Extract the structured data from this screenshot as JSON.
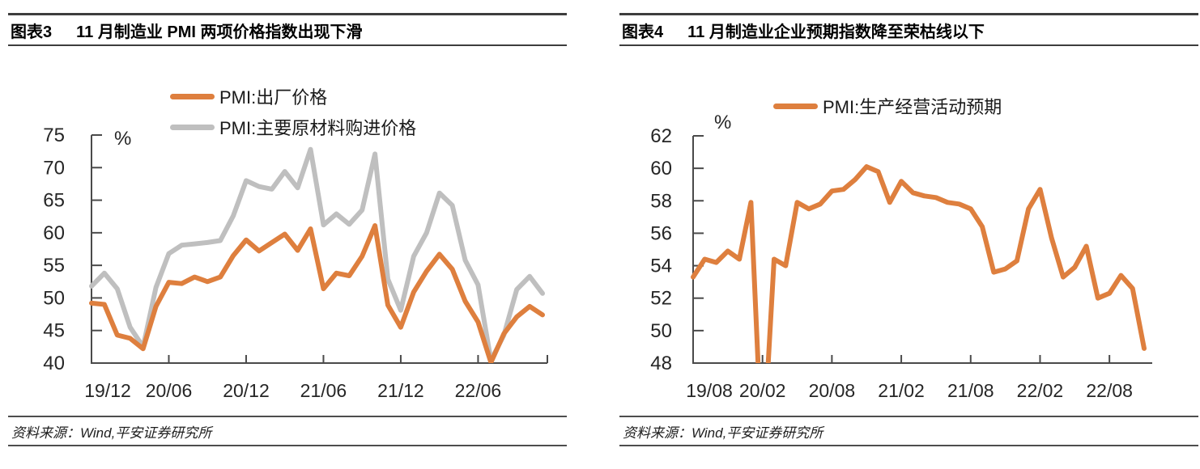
{
  "panels": {
    "left": {
      "tag": "图表3",
      "title": "11 月制造业 PMI 两项价格指数出现下滑",
      "source": "资料来源：Wind,平安证券研究所"
    },
    "right": {
      "tag": "图表4",
      "title": "11 月制造业企业预期指数降至荣枯线以下",
      "source": "资料来源：Wind,平安证券研究所"
    }
  },
  "colors": {
    "orange": "#DE7F3E",
    "gray": "#BFBFBF",
    "axis": "#4a4a4a",
    "tick_text": "#262626",
    "rule": "#3d3d3d"
  },
  "chart_data": [
    {
      "type": "line",
      "title": "11 月制造业 PMI 两项价格指数出现下滑",
      "unit": "%",
      "ylim": [
        40,
        75
      ],
      "ytick_step": 5,
      "grid": false,
      "legend_position": "top",
      "x": [
        "19/12",
        "20/01",
        "20/02",
        "20/03",
        "20/04",
        "20/05",
        "20/06",
        "20/07",
        "20/08",
        "20/09",
        "20/10",
        "20/11",
        "20/12",
        "21/01",
        "21/02",
        "21/03",
        "21/04",
        "21/05",
        "21/06",
        "21/07",
        "21/08",
        "21/09",
        "21/10",
        "21/11",
        "21/12",
        "22/01",
        "22/02",
        "22/03",
        "22/04",
        "22/05",
        "22/06",
        "22/07",
        "22/08",
        "22/09",
        "22/10",
        "22/11"
      ],
      "x_tick_labels": [
        "19/12",
        "20/06",
        "20/12",
        "21/06",
        "21/12",
        "22/06"
      ],
      "series": [
        {
          "name": "PMI:出厂价格",
          "color": "#DE7F3E",
          "values": [
            49.2,
            49.0,
            44.3,
            43.8,
            42.2,
            48.7,
            52.4,
            52.2,
            53.2,
            52.5,
            53.2,
            56.5,
            58.9,
            57.2,
            58.5,
            59.8,
            57.3,
            60.6,
            51.4,
            53.8,
            53.4,
            56.4,
            61.1,
            48.9,
            45.5,
            50.9,
            54.1,
            56.7,
            54.4,
            49.5,
            46.3,
            40.1,
            44.5,
            47.1,
            48.7,
            47.4
          ]
        },
        {
          "name": "PMI:主要原材料购进价格",
          "color": "#BFBFBF",
          "values": [
            51.8,
            53.8,
            51.4,
            45.5,
            42.5,
            51.6,
            56.8,
            58.1,
            58.3,
            58.5,
            58.8,
            62.6,
            68.0,
            67.1,
            66.7,
            69.4,
            66.9,
            72.8,
            61.2,
            62.9,
            61.3,
            63.5,
            72.1,
            52.9,
            48.1,
            56.4,
            60.0,
            66.1,
            64.2,
            55.8,
            52.0,
            40.4,
            44.3,
            51.3,
            53.3,
            50.7
          ]
        }
      ]
    },
    {
      "type": "line",
      "title": "11 月制造业企业预期指数降至荣枯线以下",
      "unit": "%",
      "ylim": [
        48,
        62
      ],
      "ytick_step": 2,
      "grid": false,
      "legend_position": "top",
      "x": [
        "19/08",
        "19/09",
        "19/10",
        "19/11",
        "19/12",
        "20/01",
        "20/02",
        "20/03",
        "20/04",
        "20/05",
        "20/06",
        "20/07",
        "20/08",
        "20/09",
        "20/10",
        "20/11",
        "20/12",
        "21/01",
        "21/02",
        "21/03",
        "21/04",
        "21/05",
        "21/06",
        "21/07",
        "21/08",
        "21/09",
        "21/10",
        "21/11",
        "21/12",
        "22/01",
        "22/02",
        "22/03",
        "22/04",
        "22/05",
        "22/06",
        "22/07",
        "22/08",
        "22/09",
        "22/10",
        "22/11"
      ],
      "x_tick_labels": [
        "19/08",
        "20/02",
        "20/08",
        "21/02",
        "21/08",
        "22/02",
        "22/08"
      ],
      "series": [
        {
          "name": "PMI:生产经营活动预期",
          "color": "#DE7F3E",
          "values": [
            53.3,
            54.4,
            54.2,
            54.9,
            54.4,
            57.9,
            41.8,
            54.4,
            54.0,
            57.9,
            57.5,
            57.8,
            58.6,
            58.7,
            59.3,
            60.1,
            59.8,
            57.9,
            59.2,
            58.5,
            58.3,
            58.2,
            57.9,
            57.8,
            57.5,
            56.4,
            53.6,
            53.8,
            54.3,
            57.5,
            58.7,
            55.7,
            53.3,
            53.9,
            55.2,
            52.0,
            52.3,
            53.4,
            52.6,
            48.9
          ]
        }
      ]
    }
  ]
}
